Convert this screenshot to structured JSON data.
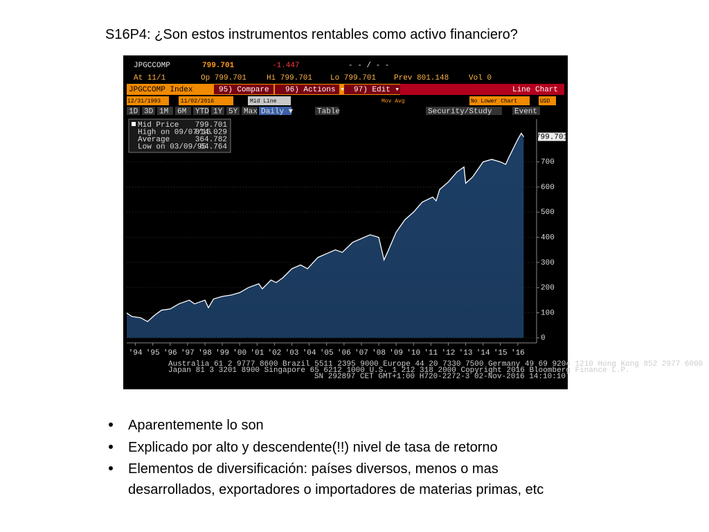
{
  "slide": {
    "title": "S16P4: ¿Son estos instrumentos rentables como activo financiero?",
    "bullets": [
      "Aparentemente lo son",
      "Explicado por alto y descendente(!!) nivel de tasa de retorno",
      "Elementos de diversificación: países diversos, menos o mas",
      "desarrollados, exportadores o importadores de materias primas, etc"
    ]
  },
  "terminal": {
    "row1": [
      "JPGCCOMP",
      "799.701",
      "-1.447",
      "- - / - -"
    ],
    "row2": [
      "At 11/1",
      "Op 799.701",
      "Hi 799.701",
      "Lo 799.701",
      "Prev 801.148",
      "Vol 0"
    ],
    "toolbar": [
      "JPGCCOMP Index",
      "95) Compare",
      "96) Actions ▾",
      "97) Edit ▾",
      "Line Chart"
    ],
    "controls": [
      "12/31/1993",
      "11/02/2016",
      "Mid Line",
      "Mov Avg",
      "No Lower Chart",
      "USD"
    ],
    "ranges": [
      "1D",
      "3D",
      "1M",
      "6M",
      "YTD",
      "1Y",
      "5Y",
      "Max",
      "Daily ▼",
      "Table",
      "Security/Study",
      "Event"
    ],
    "legend": [
      [
        "Mid Price",
        "799.701"
      ],
      [
        "High on 09/07/16",
        "814.029"
      ],
      [
        "Average",
        "364.782"
      ],
      [
        "Low on 03/09/95",
        "64.764"
      ]
    ],
    "footer": [
      "Australia 61 2 9777 8600 Brazil 5511 2395 9000 Europe 44 20 7330 7500 Germany 49 69 9204 1210 Hong Kong 852 2977 6000",
      "Japan 81 3 3201 8900       Singapore 65 6212 1000       U.S. 1 212 318 2000       Copyright 2016 Bloomberg Finance L.P.",
      "SN 292897 CET  GMT+1:00 H720-2272-3 02-Nov-2016 14:10:10"
    ]
  },
  "chart_data": {
    "type": "area",
    "color": "#1d3f66",
    "line_color": "#ffffff",
    "x": [
      1994.0,
      1994.3,
      1994.8,
      1995.2,
      1995.6,
      1996.0,
      1996.5,
      1997.0,
      1997.6,
      1997.9,
      1998.5,
      1998.7,
      1999.0,
      1999.5,
      2000.0,
      2000.5,
      2001.0,
      2001.6,
      2001.8,
      2002.3,
      2002.6,
      2003.0,
      2003.5,
      2004.0,
      2004.4,
      2005.0,
      2005.5,
      2006.0,
      2006.4,
      2007.0,
      2007.5,
      2008.0,
      2008.5,
      2008.8,
      2009.0,
      2009.5,
      2010.0,
      2010.5,
      2011.0,
      2011.6,
      2011.8,
      2012.0,
      2012.5,
      2013.0,
      2013.4,
      2013.5,
      2013.9,
      2014.5,
      2015.0,
      2015.5,
      2015.8,
      2016.0,
      2016.5,
      2016.7,
      2016.84
    ],
    "values": [
      99,
      85,
      80,
      65,
      90,
      110,
      115,
      135,
      150,
      135,
      150,
      120,
      155,
      165,
      170,
      180,
      200,
      215,
      195,
      230,
      220,
      240,
      275,
      290,
      275,
      320,
      335,
      350,
      340,
      380,
      395,
      410,
      400,
      310,
      340,
      420,
      470,
      500,
      540,
      560,
      545,
      590,
      620,
      660,
      680,
      615,
      640,
      700,
      710,
      700,
      690,
      720,
      790,
      814,
      799.701
    ],
    "xlim": [
      1994.0,
      2017.58
    ],
    "ylim": [
      -20,
      870
    ],
    "xticks": [
      {
        "value": 1994.5,
        "label": "'94"
      },
      {
        "value": 1995.5,
        "label": "'95"
      },
      {
        "value": 1996.5,
        "label": "'96"
      },
      {
        "value": 1997.5,
        "label": "'97"
      },
      {
        "value": 1998.5,
        "label": "'98"
      },
      {
        "value": 1999.5,
        "label": "'99"
      },
      {
        "value": 2000.5,
        "label": "'00"
      },
      {
        "value": 2001.5,
        "label": "'01"
      },
      {
        "value": 2002.5,
        "label": "'02"
      },
      {
        "value": 2003.5,
        "label": "'03"
      },
      {
        "value": 2004.5,
        "label": "'04"
      },
      {
        "value": 2005.5,
        "label": "'05"
      },
      {
        "value": 2006.5,
        "label": "'06"
      },
      {
        "value": 2007.5,
        "label": "'07"
      },
      {
        "value": 2008.5,
        "label": "'08"
      },
      {
        "value": 2009.5,
        "label": "'09"
      },
      {
        "value": 2010.5,
        "label": "'10"
      },
      {
        "value": 2011.5,
        "label": "'11"
      },
      {
        "value": 2012.5,
        "label": "'12"
      },
      {
        "value": 2013.5,
        "label": "'13"
      },
      {
        "value": 2014.5,
        "label": "'14"
      },
      {
        "value": 2015.5,
        "label": "'15"
      },
      {
        "value": 2016.5,
        "label": "'16"
      }
    ],
    "yticks": [
      0,
      100,
      200,
      300,
      400,
      500,
      600,
      700
    ],
    "grid": true
  }
}
